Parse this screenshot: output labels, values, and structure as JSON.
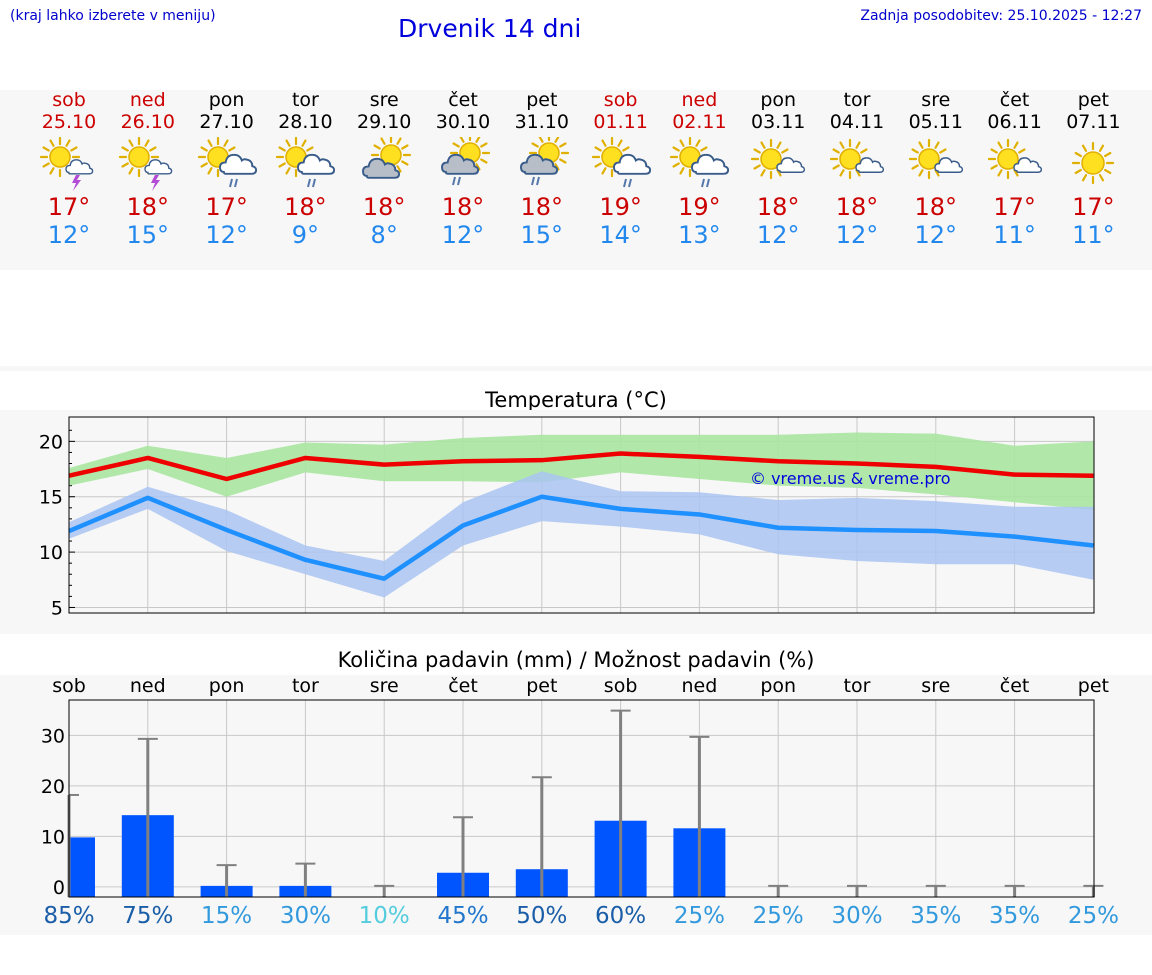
{
  "header": {
    "menu_hint": "(kraj lahko izberete v meniju)",
    "title": "Drvenik 14 dni",
    "updated": "Zadnja posodobitev: 25.10.2025 - 12:27"
  },
  "days": [
    {
      "name": "sob",
      "date": "25.10",
      "weekend": true,
      "icon": "sun-cloud-thunder-icon",
      "tmax": "17°",
      "tmin": "12°"
    },
    {
      "name": "ned",
      "date": "26.10",
      "weekend": true,
      "icon": "sun-cloud-thunder-icon",
      "tmax": "18°",
      "tmin": "15°"
    },
    {
      "name": "pon",
      "date": "27.10",
      "weekend": false,
      "icon": "sun-cloud-rain-icon",
      "tmax": "17°",
      "tmin": "12°"
    },
    {
      "name": "tor",
      "date": "28.10",
      "weekend": false,
      "icon": "sun-cloud-rain-icon",
      "tmax": "18°",
      "tmin": "9°"
    },
    {
      "name": "sre",
      "date": "29.10",
      "weekend": false,
      "icon": "sun-behind-cloud-icon",
      "tmax": "18°",
      "tmin": "8°"
    },
    {
      "name": "čet",
      "date": "30.10",
      "weekend": false,
      "icon": "sun-behind-cloud-rain-icon",
      "tmax": "18°",
      "tmin": "12°"
    },
    {
      "name": "pet",
      "date": "31.10",
      "weekend": false,
      "icon": "sun-behind-cloud-rain-icon",
      "tmax": "18°",
      "tmin": "15°"
    },
    {
      "name": "sob",
      "date": "01.11",
      "weekend": true,
      "icon": "sun-cloud-rain-icon",
      "tmax": "19°",
      "tmin": "14°"
    },
    {
      "name": "ned",
      "date": "02.11",
      "weekend": true,
      "icon": "sun-cloud-rain-icon",
      "tmax": "19°",
      "tmin": "13°"
    },
    {
      "name": "pon",
      "date": "03.11",
      "weekend": false,
      "icon": "sun-small-cloud-icon",
      "tmax": "18°",
      "tmin": "12°"
    },
    {
      "name": "tor",
      "date": "04.11",
      "weekend": false,
      "icon": "sun-small-cloud-icon",
      "tmax": "18°",
      "tmin": "12°"
    },
    {
      "name": "sre",
      "date": "05.11",
      "weekend": false,
      "icon": "sun-small-cloud-icon",
      "tmax": "18°",
      "tmin": "12°"
    },
    {
      "name": "čet",
      "date": "06.11",
      "weekend": false,
      "icon": "sun-small-cloud-icon",
      "tmax": "17°",
      "tmin": "11°"
    },
    {
      "name": "pet",
      "date": "07.11",
      "weekend": false,
      "icon": "sun-icon",
      "tmax": "17°",
      "tmin": "11°"
    }
  ],
  "colors": {
    "max_line": "#ee0000",
    "max_band": "#a8e6a0",
    "min_line": "#1e90ff",
    "min_band": "#aac4f2",
    "bar": "#0055ff",
    "whisker": "#808080"
  },
  "chart_data": [
    {
      "type": "line",
      "title": "Temperatura (°C)",
      "watermark": "© vreme.us & vreme.pro",
      "ylim": [
        4.5,
        22.2
      ],
      "yticks": [
        "5",
        "10",
        "15",
        "20"
      ],
      "grid": true,
      "series": [
        {
          "values": [
            16.9,
            18.5,
            16.6,
            18.5,
            17.9,
            18.2,
            18.3,
            18.9,
            18.6,
            18.2,
            18.0,
            17.7,
            17.0,
            16.9
          ],
          "band_low": [
            16.0,
            17.5,
            15.0,
            17.2,
            16.4,
            16.4,
            16.3,
            17.2,
            16.6,
            16.0,
            15.8,
            15.2,
            14.5,
            13.8
          ],
          "band_high": [
            17.6,
            19.6,
            18.5,
            19.9,
            19.7,
            20.3,
            20.6,
            20.6,
            20.6,
            20.6,
            20.8,
            20.7,
            19.6,
            20.0
          ]
        },
        {
          "values": [
            11.9,
            14.9,
            12.0,
            9.3,
            7.6,
            12.4,
            15.0,
            13.9,
            13.4,
            12.2,
            12.0,
            11.9,
            11.4,
            10.6
          ],
          "band_low": [
            11.2,
            13.9,
            10.1,
            8.0,
            5.9,
            10.6,
            12.8,
            12.3,
            11.6,
            9.8,
            9.2,
            8.9,
            8.9,
            7.5
          ],
          "band_high": [
            12.7,
            15.9,
            13.8,
            10.6,
            9.2,
            14.5,
            17.3,
            15.5,
            15.4,
            14.7,
            14.9,
            14.6,
            14.1,
            14.1
          ]
        }
      ]
    },
    {
      "type": "bar",
      "title": "Količina padavin (mm) / Možnost padavin (%)",
      "categories": [
        "sob",
        "ned",
        "pon",
        "tor",
        "sre",
        "čet",
        "pet",
        "sob",
        "ned",
        "pon",
        "tor",
        "sre",
        "čet",
        "pet"
      ],
      "ylim": [
        -2,
        37
      ],
      "yticks": [
        "0",
        "10",
        "20",
        "30"
      ],
      "values": [
        9.8,
        14.2,
        0.2,
        0.2,
        0,
        2.8,
        3.5,
        13.1,
        11.6,
        0,
        0,
        0,
        0,
        0
      ],
      "upper": [
        18.2,
        29.3,
        4.3,
        4.6,
        0.2,
        13.8,
        21.7,
        34.9,
        29.7,
        0.2,
        0.2,
        0.2,
        0.2,
        0.2
      ],
      "probability": [
        {
          "label": "85%",
          "color": "#1b5ea8"
        },
        {
          "label": "75%",
          "color": "#1b5ea8"
        },
        {
          "label": "15%",
          "color": "#3399dd"
        },
        {
          "label": "30%",
          "color": "#3399dd"
        },
        {
          "label": "10%",
          "color": "#55ccdd"
        },
        {
          "label": "45%",
          "color": "#2277cc"
        },
        {
          "label": "50%",
          "color": "#1b5ea8"
        },
        {
          "label": "60%",
          "color": "#1b5ea8"
        },
        {
          "label": "25%",
          "color": "#3399dd"
        },
        {
          "label": "25%",
          "color": "#3399dd"
        },
        {
          "label": "30%",
          "color": "#3399dd"
        },
        {
          "label": "35%",
          "color": "#3399dd"
        },
        {
          "label": "35%",
          "color": "#3399dd"
        },
        {
          "label": "25%",
          "color": "#3399dd"
        }
      ]
    }
  ]
}
